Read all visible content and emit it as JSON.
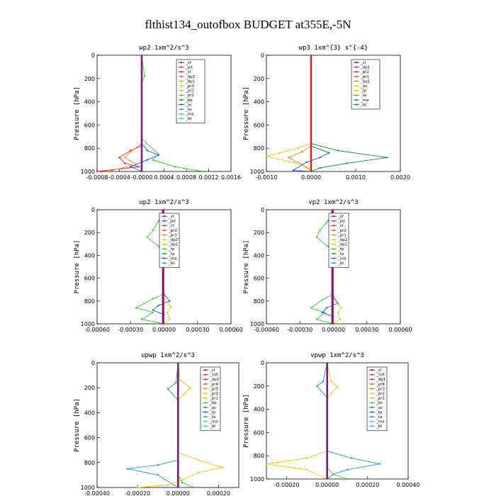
{
  "title": "flthist134_outofbox  BUDGET at355E,-5N",
  "chart_data": [
    {
      "type": "line",
      "title": "wp2   1xm^2/s^3",
      "ylabel": "Pressure [hPa]",
      "xlim": [
        -0.0008,
        0.0016
      ],
      "ylim": [
        1000,
        0
      ],
      "xticks": [
        "-0.0008",
        "-0.0004",
        "-0.0000",
        "0.0004",
        "0.0008",
        "0.0012",
        "0.0016"
      ],
      "yticks": [
        "0",
        "200",
        "400",
        "600",
        "800",
        "1000"
      ],
      "legend": [
        "_sf",
        "_pd",
        "_cl",
        "_dp2",
        "_dp1",
        "_pr3",
        "_pr2",
        "_pr1",
        "_bp",
        "_ac",
        "_ta",
        "_ma",
        "_bt"
      ],
      "series": [
        {
          "name": "_pd",
          "color": "#d92424",
          "points": [
            [
              0,
              0
            ],
            [
              0,
              600
            ],
            [
              0,
              780
            ],
            [
              -0.0002,
              820
            ],
            [
              -0.0004,
              880
            ],
            [
              -0.0003,
              930
            ],
            [
              -5e-05,
              960
            ],
            [
              -0.0008,
              1000
            ]
          ]
        },
        {
          "name": "_dp1",
          "color": "#e08a2a",
          "points": [
            [
              0,
              0
            ],
            [
              0,
              760
            ],
            [
              -0.0002,
              830
            ],
            [
              -0.0003,
              880
            ],
            [
              -0.0001,
              940
            ],
            [
              -0.0006,
              1000
            ]
          ]
        },
        {
          "name": "_pr1",
          "color": "#3bc43b",
          "points": [
            [
              0,
              0
            ],
            [
              5e-05,
              180
            ],
            [
              0,
              240
            ],
            [
              0,
              720
            ],
            [
              0.0003,
              850
            ],
            [
              0.0002,
              900
            ],
            [
              0.0006,
              960
            ],
            [
              0.0011,
              1000
            ]
          ]
        },
        {
          "name": "_ac",
          "color": "#1f5fd6",
          "points": [
            [
              0,
              0
            ],
            [
              0,
              760
            ],
            [
              0.0001,
              820
            ],
            [
              0.0003,
              860
            ],
            [
              0.0001,
              900
            ],
            [
              -0.0002,
              960
            ],
            [
              0,
              1000
            ]
          ]
        },
        {
          "name": "_cl",
          "color": "#7a1f7a",
          "points": [
            [
              0,
              0
            ],
            [
              0,
              1000
            ]
          ]
        }
      ]
    },
    {
      "type": "line",
      "title": "wp3   1xm^{3} s^{-4}",
      "ylabel": "Pressure [hPa]",
      "xlim": [
        -0.001,
        0.002
      ],
      "ylim": [
        1000,
        0
      ],
      "xticks": [
        "-0.0010",
        "0.0000",
        "0.0010",
        "0.0020"
      ],
      "yticks": [
        "0",
        "200",
        "400",
        "600",
        "800",
        "1000"
      ],
      "legend": [
        "_cl",
        "_dp1",
        "_pr2",
        "_pr1",
        "_bp1",
        "_ac",
        "_tp",
        "_ta",
        "_ma",
        "_bt"
      ],
      "series": [
        {
          "name": "_pr2",
          "color": "#f0c020",
          "points": [
            [
              0,
              0
            ],
            [
              0,
              760
            ],
            [
              -0.0003,
              800
            ],
            [
              -0.0007,
              840
            ],
            [
              -0.001,
              870
            ],
            [
              -0.0004,
              920
            ],
            [
              -0.0001,
              960
            ],
            [
              0,
              1000
            ]
          ]
        },
        {
          "name": "_pr1",
          "color": "#e08a2a",
          "points": [
            [
              0,
              0
            ],
            [
              0,
              780
            ],
            [
              -0.0002,
              830
            ],
            [
              -0.0005,
              880
            ],
            [
              -0.0002,
              940
            ],
            [
              0,
              1000
            ]
          ]
        },
        {
          "name": "_ac",
          "color": "#1e8a3a",
          "points": [
            [
              0,
              0
            ],
            [
              0,
              760
            ],
            [
              0.0006,
              820
            ],
            [
              0.0017,
              880
            ],
            [
              0.0008,
              930
            ],
            [
              0.0002,
              970
            ],
            [
              0,
              1000
            ]
          ]
        },
        {
          "name": "_tp",
          "color": "#1f5fd6",
          "points": [
            [
              0,
              0
            ],
            [
              0,
              780
            ],
            [
              0.0004,
              840
            ],
            [
              0.0002,
              880
            ],
            [
              -0.0001,
              920
            ],
            [
              -0.0004,
              990
            ],
            [
              0,
              1000
            ]
          ]
        },
        {
          "name": "_cl",
          "color": "#d92424",
          "points": [
            [
              0,
              0
            ],
            [
              0,
              1000
            ]
          ]
        }
      ]
    },
    {
      "type": "line",
      "title": "up2   1xm^2/s^3",
      "ylabel": "Pressure [hPa]",
      "xlim": [
        -0.0006,
        0.0006
      ],
      "ylim": [
        1000,
        0
      ],
      "xticks": [
        "-0.00060",
        "-0.00030",
        "0.00000",
        "0.00030",
        "0.00060"
      ],
      "yticks": [
        "0",
        "200",
        "400",
        "600",
        "800",
        "1000"
      ],
      "legend": [
        "_sf",
        "_pd",
        "_cl",
        "_pr2",
        "_pr1",
        "_dp2",
        "_dp1",
        "_tp",
        "_ta",
        "_ma",
        "_bt"
      ],
      "series": [
        {
          "name": "_dp2",
          "color": "#3bc43b",
          "points": [
            [
              0,
              0
            ],
            [
              -5e-05,
              100
            ],
            [
              -0.0001,
              180
            ],
            [
              -0.00015,
              240
            ],
            [
              -5e-05,
              320
            ],
            [
              0,
              400
            ],
            [
              0,
              740
            ],
            [
              -0.0001,
              780
            ],
            [
              -0.00025,
              860
            ],
            [
              -0.0001,
              900
            ],
            [
              -0.0002,
              960
            ],
            [
              0,
              1000
            ]
          ]
        },
        {
          "name": "_tp",
          "color": "#1f5fd6",
          "points": [
            [
              0,
              0
            ],
            [
              0,
              740
            ],
            [
              5e-05,
              800
            ],
            [
              -5e-05,
              840
            ],
            [
              -0.0001,
              880
            ],
            [
              0,
              920
            ],
            [
              0,
              1000
            ]
          ]
        },
        {
          "name": "_pr2",
          "color": "#f0c020",
          "points": [
            [
              0,
              0
            ],
            [
              0,
              780
            ],
            [
              6e-05,
              850
            ],
            [
              3e-05,
              900
            ],
            [
              5e-05,
              960
            ],
            [
              0,
              1000
            ]
          ]
        },
        {
          "name": "_pd",
          "color": "#d92424",
          "points": [
            [
              0,
              0
            ],
            [
              0,
              1000
            ]
          ]
        },
        {
          "name": "_cl",
          "color": "#7a1f7a",
          "points": [
            [
              -1e-05,
              0
            ],
            [
              -1e-05,
              1000
            ]
          ]
        }
      ]
    },
    {
      "type": "line",
      "title": "vp2   1xm^2/s^3",
      "ylabel": "Pressure [hPa]",
      "xlim": [
        -0.0006,
        0.0006
      ],
      "ylim": [
        1000,
        0
      ],
      "xticks": [
        "-0.00060",
        "-0.00030",
        "0.00000",
        "0.00030",
        "0.00060"
      ],
      "yticks": [
        "0",
        "200",
        "400",
        "600",
        "800",
        "1000"
      ],
      "legend": [
        "_sf",
        "_pd",
        "_cl",
        "_pr2",
        "_pr1",
        "_dp2",
        "_dp1",
        "_tp",
        "_ta",
        "_ma",
        "_bt"
      ],
      "series": [
        {
          "name": "_dp2",
          "color": "#3bc43b",
          "points": [
            [
              0,
              0
            ],
            [
              -5e-05,
              100
            ],
            [
              -0.00012,
              180
            ],
            [
              -0.00015,
              240
            ],
            [
              -5e-05,
              320
            ],
            [
              0,
              400
            ],
            [
              0,
              740
            ],
            [
              -0.0001,
              790
            ],
            [
              -0.0002,
              860
            ],
            [
              -8e-05,
              900
            ],
            [
              -0.00015,
              960
            ],
            [
              0,
              1000
            ]
          ]
        },
        {
          "name": "_tp",
          "color": "#1f5fd6",
          "points": [
            [
              0,
              0
            ],
            [
              0,
              760
            ],
            [
              4e-05,
              820
            ],
            [
              -6e-05,
              860
            ],
            [
              -0.0001,
              900
            ],
            [
              0,
              940
            ],
            [
              0,
              1000
            ]
          ]
        },
        {
          "name": "_pr2",
          "color": "#f0c020",
          "points": [
            [
              0,
              0
            ],
            [
              0,
              780
            ],
            [
              7e-05,
              860
            ],
            [
              4e-05,
              900
            ],
            [
              6e-05,
              960
            ],
            [
              0,
              1000
            ]
          ]
        },
        {
          "name": "_pd",
          "color": "#d92424",
          "points": [
            [
              0,
              0
            ],
            [
              0,
              1000
            ]
          ]
        },
        {
          "name": "_cl",
          "color": "#7a1f7a",
          "points": [
            [
              -1e-05,
              0
            ],
            [
              -1e-05,
              1000
            ]
          ]
        }
      ]
    },
    {
      "type": "line",
      "title": "upwp   1xm^2/s^3",
      "ylabel": "Pressure [hPa]",
      "xlim": [
        -0.0004,
        0.0003
      ],
      "ylim": [
        1000,
        0
      ],
      "xticks": [
        "-0.00040",
        "-0.00020",
        "0.00000",
        "0.00020"
      ],
      "yticks": [
        "0",
        "200",
        "400",
        "600",
        "800",
        "1000"
      ],
      "legend": [
        "_cl",
        "_mfl",
        "_dp1",
        "_pr4",
        "_pr3",
        "_pr2",
        "_pr1",
        "_bp",
        "_ac",
        "_tp",
        "_ta",
        "_ma",
        "_bt"
      ],
      "series": [
        {
          "name": "_pr2",
          "color": "#f0c020",
          "points": [
            [
              0,
              0
            ],
            [
              1e-05,
              140
            ],
            [
              6e-05,
              200
            ],
            [
              3e-05,
              250
            ],
            [
              0,
              300
            ],
            [
              0,
              720
            ],
            [
              0.0001,
              780
            ],
            [
              0.00022,
              840
            ],
            [
              0.0001,
              880
            ],
            [
              2e-05,
              940
            ],
            [
              -5e-05,
              980
            ],
            [
              -0.0002,
              1000
            ]
          ]
        },
        {
          "name": "_tp",
          "color": "#2a8fd0",
          "points": [
            [
              0,
              0
            ],
            [
              -1e-05,
              160
            ],
            [
              -5e-05,
              210
            ],
            [
              0,
              300
            ],
            [
              0,
              780
            ],
            [
              -0.0001,
              820
            ],
            [
              -0.00025,
              850
            ],
            [
              -0.0001,
              900
            ],
            [
              0,
              1000
            ]
          ]
        },
        {
          "name": "_ac",
          "color": "#3bc43b",
          "points": [
            [
              0,
              0
            ],
            [
              0,
              900
            ],
            [
              2e-05,
              960
            ],
            [
              8e-05,
              1000
            ]
          ]
        },
        {
          "name": "_cl",
          "color": "#7a1f7a",
          "points": [
            [
              0,
              0
            ],
            [
              0,
              1000
            ]
          ]
        }
      ]
    },
    {
      "type": "line",
      "title": "vpwp   1xm^2/s^3",
      "ylabel": "Pressure [hPa]",
      "xlim": [
        -0.0003,
        0.0004
      ],
      "ylim": [
        1000,
        0
      ],
      "xticks": [
        "-0.00020",
        "0.00000",
        "0.00020",
        "0.00040"
      ],
      "yticks": [
        "0",
        "200",
        "400",
        "600",
        "800",
        "1000"
      ],
      "legend": [
        "_cl",
        "_mfl",
        "_dp1",
        "_pr4",
        "_pr3",
        "_pr2",
        "_pr1",
        "_bs",
        "_ac",
        "_tp",
        "_ta",
        "_ma",
        "_bt"
      ],
      "series": [
        {
          "name": "_pr2",
          "color": "#f0c020",
          "points": [
            [
              0,
              0
            ],
            [
              2e-05,
              160
            ],
            [
              5e-05,
              210
            ],
            [
              2e-05,
              260
            ],
            [
              0,
              320
            ],
            [
              0,
              760
            ],
            [
              -0.0001,
              820
            ],
            [
              -0.0003,
              870
            ],
            [
              -0.0001,
              920
            ],
            [
              0,
              1000
            ]
          ]
        },
        {
          "name": "_tp",
          "color": "#2a8fd0",
          "points": [
            [
              0,
              0
            ],
            [
              -2e-05,
              160
            ],
            [
              -5e-05,
              200
            ],
            [
              0,
              300
            ],
            [
              0,
              760
            ],
            [
              0.00012,
              820
            ],
            [
              0.00026,
              870
            ],
            [
              0.0001,
              920
            ],
            [
              3e-05,
              960
            ],
            [
              0,
              1000
            ]
          ]
        },
        {
          "name": "_ac",
          "color": "#3bc43b",
          "points": [
            [
              0,
              0
            ],
            [
              0,
              900
            ],
            [
              3e-05,
              960
            ],
            [
              0.0001,
              1000
            ]
          ]
        },
        {
          "name": "_cl",
          "color": "#7a1f7a",
          "points": [
            [
              0,
              0
            ],
            [
              0,
              1000
            ]
          ]
        }
      ]
    }
  ]
}
